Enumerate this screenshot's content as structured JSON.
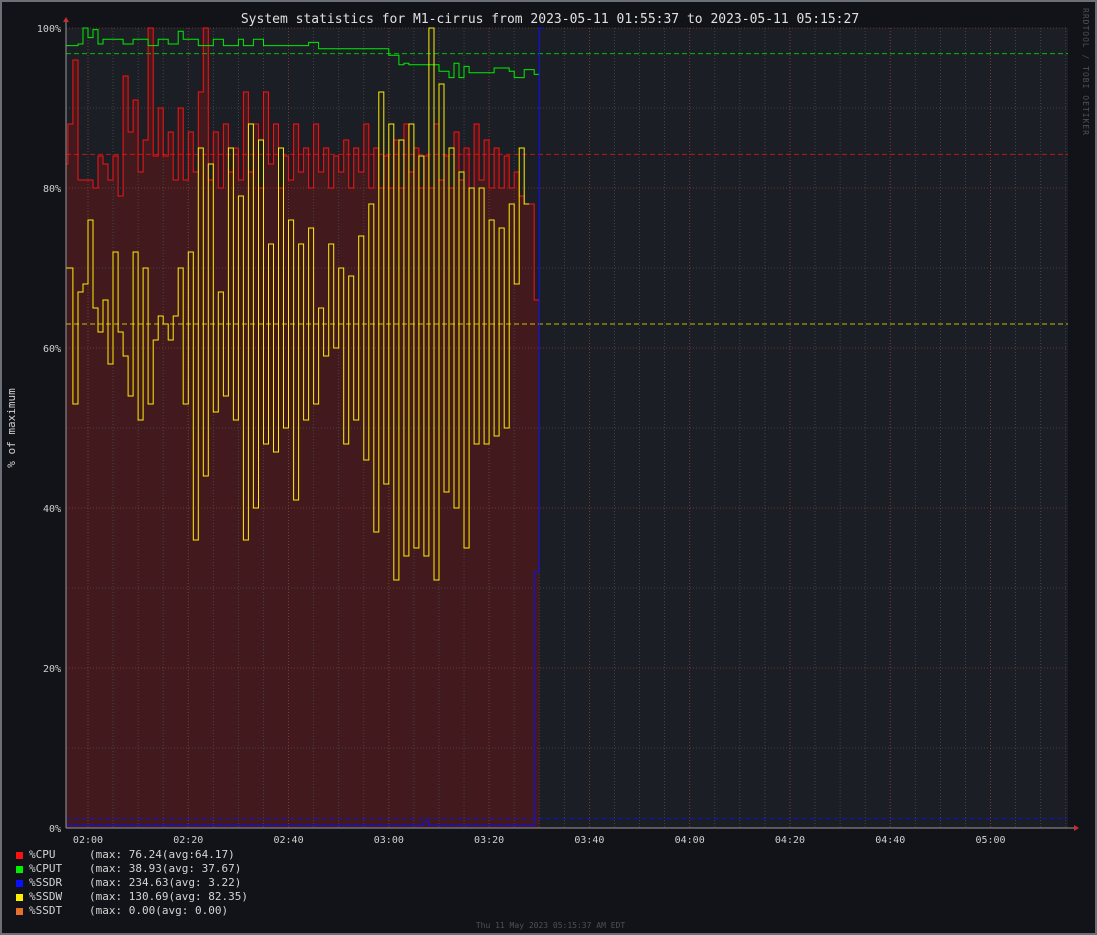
{
  "chart_data": {
    "type": "line",
    "title": "System statistics for M1-cirrus from 2023-05-11 01:55:37 to 2023-05-11 05:15:27",
    "ylabel": "% of maximum",
    "xlabel": "",
    "ylim": [
      0,
      100
    ],
    "xlim": [
      "01:55:37",
      "05:15:27"
    ],
    "y_ticks": [
      "0%",
      "20%",
      "40%",
      "60%",
      "80%",
      "100%"
    ],
    "x_ticks": [
      "02:00",
      "02:20",
      "02:40",
      "03:00",
      "03:20",
      "03:40",
      "04:00",
      "04:20",
      "04:40",
      "05:00"
    ],
    "grid": true,
    "legend_position": "bottom-left",
    "series": [
      {
        "name": "%CPU",
        "color": "#ff1010",
        "fill": "#421a1e",
        "max_text": "(max: 76.24(avg:64.17)",
        "dashed_level": 84.2,
        "points": [
          [
            "01:55:37",
            83
          ],
          [
            "01:56",
            88
          ],
          [
            "01:57",
            96
          ],
          [
            "01:58",
            81
          ],
          [
            "02:00",
            81
          ],
          [
            "02:01",
            80
          ],
          [
            "02:02",
            84
          ],
          [
            "02:03",
            83
          ],
          [
            "02:04",
            81
          ],
          [
            "02:05",
            84
          ],
          [
            "02:06",
            79
          ],
          [
            "02:07",
            94
          ],
          [
            "02:08",
            87
          ],
          [
            "02:09",
            91
          ],
          [
            "02:10",
            82
          ],
          [
            "02:11",
            86
          ],
          [
            "02:12",
            100
          ],
          [
            "02:13",
            84
          ],
          [
            "02:14",
            90
          ],
          [
            "02:15",
            84
          ],
          [
            "02:16",
            87
          ],
          [
            "02:17",
            81
          ],
          [
            "02:18",
            90
          ],
          [
            "02:19",
            81
          ],
          [
            "02:20",
            87
          ],
          [
            "02:21",
            82
          ],
          [
            "02:22",
            92
          ],
          [
            "02:23",
            100
          ],
          [
            "02:24",
            81
          ],
          [
            "02:25",
            87
          ],
          [
            "02:26",
            80
          ],
          [
            "02:27",
            88
          ],
          [
            "02:28",
            82
          ],
          [
            "02:29",
            85
          ],
          [
            "02:30",
            81
          ],
          [
            "02:31",
            92
          ],
          [
            "02:32",
            82
          ],
          [
            "02:33",
            88
          ],
          [
            "02:34",
            80
          ],
          [
            "02:35",
            92
          ],
          [
            "02:36",
            83
          ],
          [
            "02:37",
            88
          ],
          [
            "02:38",
            80
          ],
          [
            "02:39",
            84
          ],
          [
            "02:40",
            81
          ],
          [
            "02:41",
            88
          ],
          [
            "02:42",
            82
          ],
          [
            "02:43",
            85
          ],
          [
            "02:44",
            80
          ],
          [
            "02:45",
            88
          ],
          [
            "02:46",
            82
          ],
          [
            "02:47",
            85
          ],
          [
            "02:48",
            80
          ],
          [
            "02:49",
            84
          ],
          [
            "02:50",
            82
          ],
          [
            "02:51",
            86
          ],
          [
            "02:52",
            80
          ],
          [
            "02:53",
            85
          ],
          [
            "02:54",
            82
          ],
          [
            "02:55",
            88
          ],
          [
            "02:56",
            80
          ],
          [
            "02:57",
            85
          ],
          [
            "02:58",
            80
          ],
          [
            "02:59",
            84
          ],
          [
            "03:00",
            80
          ],
          [
            "03:01",
            86
          ],
          [
            "03:02",
            80
          ],
          [
            "03:03",
            88
          ],
          [
            "03:04",
            82
          ],
          [
            "03:05",
            85
          ],
          [
            "03:06",
            80
          ],
          [
            "03:07",
            84
          ],
          [
            "03:08",
            80
          ],
          [
            "03:09",
            88
          ],
          [
            "03:10",
            81
          ],
          [
            "03:11",
            84
          ],
          [
            "03:12",
            80
          ],
          [
            "03:13",
            87
          ],
          [
            "03:14",
            81
          ],
          [
            "03:15",
            85
          ],
          [
            "03:16",
            80
          ],
          [
            "03:17",
            88
          ],
          [
            "03:18",
            81
          ],
          [
            "03:19",
            86
          ],
          [
            "03:20",
            80
          ],
          [
            "03:21",
            85
          ],
          [
            "03:22",
            80
          ],
          [
            "03:23",
            84
          ],
          [
            "03:24",
            80
          ],
          [
            "03:25",
            82
          ],
          [
            "03:26",
            79
          ],
          [
            "03:27",
            78
          ],
          [
            "03:28",
            78
          ],
          [
            "03:29",
            66
          ],
          [
            "03:30",
            66
          ]
        ]
      },
      {
        "name": "%CPUT",
        "color": "#00ee00",
        "max_text": "(max: 38.93(avg: 37.67)",
        "dashed_level": 96.8,
        "points": [
          [
            "01:55:37",
            97.8
          ],
          [
            "01:58",
            98.0
          ],
          [
            "01:59",
            100
          ],
          [
            "02:00",
            98.8
          ],
          [
            "02:01",
            99.8
          ],
          [
            "02:02",
            98.0
          ],
          [
            "02:03",
            98.6
          ],
          [
            "02:06",
            98.6
          ],
          [
            "02:07",
            98.0
          ],
          [
            "02:09",
            98.6
          ],
          [
            "02:12",
            97.8
          ],
          [
            "02:14",
            98.6
          ],
          [
            "02:16",
            98.0
          ],
          [
            "02:18",
            99.6
          ],
          [
            "02:19",
            98.6
          ],
          [
            "02:21",
            98.6
          ],
          [
            "02:22",
            97.8
          ],
          [
            "02:25",
            98.6
          ],
          [
            "02:27",
            97.8
          ],
          [
            "02:30",
            98.6
          ],
          [
            "02:31",
            97.8
          ],
          [
            "02:33",
            98.6
          ],
          [
            "02:35",
            97.8
          ],
          [
            "02:44",
            98.2
          ],
          [
            "02:46",
            97.4
          ],
          [
            "02:52",
            97.4
          ],
          [
            "02:59",
            97.4
          ],
          [
            "03:00",
            96.6
          ],
          [
            "03:01",
            96.6
          ],
          [
            "03:02",
            95.4
          ],
          [
            "03:03",
            95.6
          ],
          [
            "03:04",
            95.4
          ],
          [
            "03:10",
            94.6
          ],
          [
            "03:11",
            94.6
          ],
          [
            "03:12",
            93.8
          ],
          [
            "03:13",
            95.6
          ],
          [
            "03:14",
            93.8
          ],
          [
            "03:15",
            95.2
          ],
          [
            "03:16",
            94.4
          ],
          [
            "03:21",
            95.0
          ],
          [
            "03:24",
            94.6
          ],
          [
            "03:25",
            93.8
          ],
          [
            "03:27",
            94.8
          ],
          [
            "03:29",
            94.2
          ],
          [
            "03:30",
            94.2
          ]
        ]
      },
      {
        "name": "%SSDR",
        "color": "#0a10ff",
        "max_text": "(max: 234.63(avg: 3.22)",
        "dashed_level": 1.2,
        "points": [
          [
            "01:55:37",
            0.3
          ],
          [
            "03:06",
            0.3
          ],
          [
            "03:07",
            0.8
          ],
          [
            "03:08",
            0.3
          ],
          [
            "03:28",
            0.3
          ],
          [
            "03:29",
            32
          ],
          [
            "03:30",
            100
          ],
          [
            "03:31",
            100
          ]
        ]
      },
      {
        "name": "%SSDW",
        "color": "#ffee00",
        "max_text": "(max: 130.69(avg: 82.35)",
        "dashed_level": 63.0,
        "points": [
          [
            "01:55:37",
            70
          ],
          [
            "01:57",
            53
          ],
          [
            "01:58",
            67
          ],
          [
            "01:59",
            68
          ],
          [
            "02:00",
            76
          ],
          [
            "02:01",
            65
          ],
          [
            "02:02",
            62
          ],
          [
            "02:03",
            66
          ],
          [
            "02:04",
            58
          ],
          [
            "02:05",
            72
          ],
          [
            "02:06",
            62
          ],
          [
            "02:07",
            59
          ],
          [
            "02:08",
            54
          ],
          [
            "02:09",
            72
          ],
          [
            "02:10",
            51
          ],
          [
            "02:11",
            70
          ],
          [
            "02:12",
            53
          ],
          [
            "02:13",
            61
          ],
          [
            "02:14",
            64
          ],
          [
            "02:15",
            63
          ],
          [
            "02:16",
            61
          ],
          [
            "02:17",
            64
          ],
          [
            "02:18",
            70
          ],
          [
            "02:19",
            53
          ],
          [
            "02:20",
            72
          ],
          [
            "02:21",
            36
          ],
          [
            "02:22",
            85
          ],
          [
            "02:23",
            44
          ],
          [
            "02:24",
            83
          ],
          [
            "02:25",
            52
          ],
          [
            "02:26",
            67
          ],
          [
            "02:27",
            54
          ],
          [
            "02:28",
            85
          ],
          [
            "02:29",
            51
          ],
          [
            "02:30",
            79
          ],
          [
            "02:31",
            36
          ],
          [
            "02:32",
            88
          ],
          [
            "02:33",
            40
          ],
          [
            "02:34",
            86
          ],
          [
            "02:35",
            48
          ],
          [
            "02:36",
            73
          ],
          [
            "02:37",
            47
          ],
          [
            "02:38",
            85
          ],
          [
            "02:39",
            50
          ],
          [
            "02:40",
            76
          ],
          [
            "02:41",
            41
          ],
          [
            "02:42",
            73
          ],
          [
            "02:43",
            51
          ],
          [
            "02:44",
            75
          ],
          [
            "02:45",
            53
          ],
          [
            "02:46",
            65
          ],
          [
            "02:47",
            59
          ],
          [
            "02:48",
            73
          ],
          [
            "02:49",
            60
          ],
          [
            "02:50",
            70
          ],
          [
            "02:51",
            48
          ],
          [
            "02:52",
            69
          ],
          [
            "02:53",
            51
          ],
          [
            "02:54",
            74
          ],
          [
            "02:55",
            46
          ],
          [
            "02:56",
            78
          ],
          [
            "02:57",
            37
          ],
          [
            "02:58",
            92
          ],
          [
            "02:59",
            43
          ],
          [
            "03:00",
            88
          ],
          [
            "03:01",
            31
          ],
          [
            "03:02",
            86
          ],
          [
            "03:03",
            34
          ],
          [
            "03:04",
            88
          ],
          [
            "03:05",
            35
          ],
          [
            "03:06",
            84
          ],
          [
            "03:07",
            34
          ],
          [
            "03:08",
            100
          ],
          [
            "03:09",
            31
          ],
          [
            "03:10",
            93
          ],
          [
            "03:11",
            42
          ],
          [
            "03:12",
            85
          ],
          [
            "03:13",
            40
          ],
          [
            "03:14",
            82
          ],
          [
            "03:15",
            35
          ],
          [
            "03:16",
            80
          ],
          [
            "03:17",
            48
          ],
          [
            "03:18",
            80
          ],
          [
            "03:19",
            48
          ],
          [
            "03:20",
            76
          ],
          [
            "03:21",
            49
          ],
          [
            "03:22",
            75
          ],
          [
            "03:23",
            50
          ],
          [
            "03:24",
            78
          ],
          [
            "03:25",
            68
          ],
          [
            "03:26",
            85
          ],
          [
            "03:27",
            78
          ],
          [
            "03:28",
            78
          ]
        ]
      },
      {
        "name": "%SSDT",
        "color": "#e8702a",
        "max_text": "(max: 0.00(avg: 0.00)",
        "points": []
      }
    ]
  },
  "footer": "Thu 11 May 2023 05:15:37 AM EDT",
  "watermark": "RRDTOOL / TOBI OETIKER"
}
